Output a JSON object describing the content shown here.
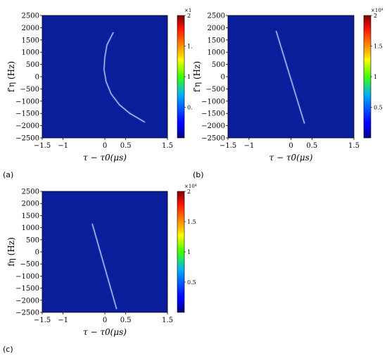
{
  "chart_data": [
    {
      "type": "heatmap",
      "panel_label": "(a)",
      "xlabel": "τ − τ0(μs)",
      "ylabel": "f′η (Hz)",
      "xlim": [
        -1.5,
        1.5
      ],
      "ylim": [
        -2500,
        2500
      ],
      "x_ticks": [
        "−1.5",
        "−1",
        "0",
        "0.5",
        "1.5"
      ],
      "y_ticks": [
        "2500",
        "2000",
        "1500",
        "1000",
        "500",
        "0",
        "−500",
        "−1000",
        "−1500",
        "−2000",
        "−2500"
      ],
      "colorbar": {
        "exponent": "×1",
        "ticks": [
          "2",
          "1.",
          "1",
          "0."
        ],
        "tick_values": [
          2,
          1.5,
          1,
          0.5
        ],
        "range": [
          0,
          2
        ]
      },
      "background_color": "#0a1e9c",
      "line_color": "#7fb2ff",
      "trace": [
        [
          0.2,
          1800
        ],
        [
          0.05,
          1300
        ],
        [
          0.0,
          800
        ],
        [
          -0.02,
          300
        ],
        [
          0.03,
          -200
        ],
        [
          0.15,
          -700
        ],
        [
          0.35,
          -1150
        ],
        [
          0.6,
          -1500
        ],
        [
          0.95,
          -1850
        ]
      ]
    },
    {
      "type": "heatmap",
      "panel_label": "(b)",
      "xlabel": "τ − τ0(μs)",
      "ylabel": "f′η (Hz)",
      "xlim": [
        -1.5,
        1.5
      ],
      "ylim": [
        -2500,
        2500
      ],
      "x_ticks": [
        "−1.5",
        "−1",
        "0",
        "0.5",
        "1.5"
      ],
      "y_ticks": [
        "2500",
        "2000",
        "1500",
        "1000",
        "500",
        "0",
        "−500",
        "−1000",
        "−1500",
        "−2000",
        "−2500"
      ],
      "colorbar": {
        "exponent": "×10⁴",
        "ticks": [
          "2",
          "1.5",
          "1",
          "0.5"
        ],
        "tick_values": [
          2,
          1.5,
          1,
          0.5
        ],
        "range": [
          0,
          2
        ]
      },
      "background_color": "#0a1e9c",
      "line_color": "#7fb2ff",
      "trace": [
        [
          -0.35,
          1850
        ],
        [
          0.32,
          -1900
        ]
      ]
    },
    {
      "type": "heatmap",
      "panel_label": "(c)",
      "xlabel": "τ − τ0(μs)",
      "ylabel": "fη (Hz)",
      "xlim": [
        -1.5,
        1.5
      ],
      "ylim": [
        -2500,
        2500
      ],
      "x_ticks": [
        "−1.5",
        "−1",
        "0",
        "0.5",
        "1.5"
      ],
      "y_ticks": [
        "2500",
        "2000",
        "1500",
        "1000",
        "500",
        "0",
        "−500",
        "−1000",
        "−1500",
        "−2000",
        "−2500"
      ],
      "colorbar": {
        "exponent": "×10⁴",
        "ticks": [
          "2",
          "1.5",
          "1",
          "0.5"
        ],
        "tick_values": [
          2,
          1.5,
          1,
          0.5
        ],
        "range": [
          0,
          2
        ]
      },
      "background_color": "#0a1e9c",
      "line_color": "#7fb2ff",
      "trace": [
        [
          -0.3,
          1150
        ],
        [
          0.28,
          -2350
        ]
      ]
    }
  ]
}
